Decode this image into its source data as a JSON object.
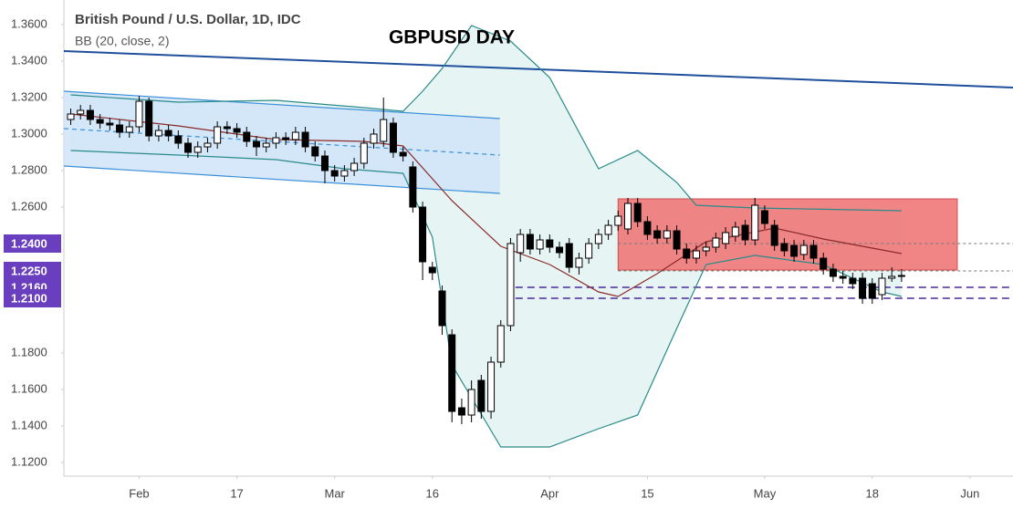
{
  "chart_data": {
    "type": "candlestick",
    "legend_title": "British Pound / U.S. Dollar, 1D, IDC",
    "legend_subtitle": "BB (20, close, 2)",
    "title": "GBPUSD DAY",
    "xlim": [
      -0.7,
      96.4
    ],
    "ylim": [
      1.1125,
      1.3735
    ],
    "xticks": [
      {
        "value": 7,
        "label": "Feb"
      },
      {
        "value": 17,
        "label": "17"
      },
      {
        "value": 27,
        "label": "Mar"
      },
      {
        "value": 37,
        "label": "16"
      },
      {
        "value": 49,
        "label": "Apr"
      },
      {
        "value": 59,
        "label": "15"
      },
      {
        "value": 71,
        "label": "May"
      },
      {
        "value": 82,
        "label": "18"
      },
      {
        "value": 92,
        "label": "Jun"
      }
    ],
    "yticks": [
      {
        "value": 1.36,
        "label": "1.3600"
      },
      {
        "value": 1.34,
        "label": "1.3400"
      },
      {
        "value": 1.32,
        "label": "1.3200"
      },
      {
        "value": 1.3,
        "label": "1.3000"
      },
      {
        "value": 1.28,
        "label": "1.2800"
      },
      {
        "value": 1.26,
        "label": "1.2600"
      },
      {
        "value": 1.18,
        "label": "1.1800"
      },
      {
        "value": 1.16,
        "label": "1.1600"
      },
      {
        "value": 1.14,
        "label": "1.1400"
      },
      {
        "value": 1.12,
        "label": "1.1200"
      }
    ],
    "levels": [
      {
        "value": 1.24,
        "label": "1.2400"
      },
      {
        "value": 1.225,
        "label": "1.2250"
      },
      {
        "value": 1.216,
        "label": "1.2160"
      },
      {
        "value": 1.21,
        "label": "1.2100"
      }
    ],
    "up_color": "#ffffff",
    "down_color": "#000000",
    "open": [
      1.308,
      1.311,
      1.313,
      1.308,
      1.306,
      1.305,
      1.301,
      1.304,
      1.318,
      1.299,
      1.302,
      1.299,
      1.295,
      1.29,
      1.293,
      1.295,
      1.304,
      1.303,
      1.301,
      1.296,
      1.293,
      1.295,
      1.298,
      1.297,
      1.301,
      1.293,
      1.288,
      1.28,
      1.277,
      1.28,
      1.284,
      1.295,
      1.296,
      1.306,
      1.29,
      1.282,
      1.26,
      1.227,
      1.214,
      1.19,
      1.15,
      1.146,
      1.165,
      1.148,
      1.175,
      1.195,
      1.235,
      1.245,
      1.237,
      1.242,
      1.238,
      1.24,
      1.227,
      1.232,
      1.24,
      1.245,
      1.25,
      1.248,
      1.262,
      1.252,
      1.247,
      1.243,
      1.247,
      1.237,
      1.232,
      1.236,
      1.238,
      1.24,
      1.244,
      1.25,
      1.242,
      1.258,
      1.25,
      1.24,
      1.239,
      1.234,
      1.239,
      1.232,
      1.226,
      1.222,
      1.221,
      1.221,
      1.218,
      1.212,
      1.221,
      1.222
    ],
    "high": [
      1.314,
      1.316,
      1.316,
      1.311,
      1.309,
      1.308,
      1.307,
      1.321,
      1.32,
      1.305,
      1.305,
      1.302,
      1.298,
      1.296,
      1.298,
      1.307,
      1.307,
      1.306,
      1.304,
      1.299,
      1.298,
      1.301,
      1.301,
      1.304,
      1.304,
      1.296,
      1.291,
      1.283,
      1.283,
      1.287,
      1.298,
      1.303,
      1.32,
      1.309,
      1.293,
      1.285,
      1.263,
      1.23,
      1.217,
      1.193,
      1.155,
      1.165,
      1.168,
      1.178,
      1.198,
      1.243,
      1.248,
      1.248,
      1.245,
      1.245,
      1.241,
      1.243,
      1.235,
      1.243,
      1.248,
      1.253,
      1.258,
      1.265,
      1.265,
      1.255,
      1.25,
      1.25,
      1.25,
      1.24,
      1.239,
      1.241,
      1.246,
      1.249,
      1.252,
      1.253,
      1.265,
      1.261,
      1.253,
      1.243,
      1.242,
      1.242,
      1.242,
      1.235,
      1.229,
      1.225,
      1.224,
      1.224,
      1.221,
      1.224,
      1.227,
      1.226
    ],
    "low": [
      1.305,
      1.308,
      1.305,
      1.303,
      1.302,
      1.298,
      1.298,
      1.301,
      1.296,
      1.296,
      1.296,
      1.292,
      1.287,
      1.287,
      1.29,
      1.292,
      1.3,
      1.298,
      1.293,
      1.288,
      1.29,
      1.292,
      1.294,
      1.294,
      1.29,
      1.285,
      1.273,
      1.274,
      1.274,
      1.277,
      1.281,
      1.292,
      1.293,
      1.287,
      1.285,
      1.257,
      1.22,
      1.22,
      1.19,
      1.142,
      1.141,
      1.142,
      1.144,
      1.144,
      1.172,
      1.192,
      1.23,
      1.234,
      1.234,
      1.235,
      1.232,
      1.224,
      1.223,
      1.229,
      1.237,
      1.242,
      1.247,
      1.245,
      1.249,
      1.242,
      1.24,
      1.24,
      1.234,
      1.229,
      1.229,
      1.233,
      1.235,
      1.237,
      1.241,
      1.239,
      1.239,
      1.248,
      1.236,
      1.233,
      1.23,
      1.231,
      1.229,
      1.223,
      1.219,
      1.218,
      1.215,
      1.207,
      1.207,
      1.209,
      1.219,
      1.219
    ],
    "close": [
      1.311,
      1.313,
      1.308,
      1.306,
      1.305,
      1.301,
      1.304,
      1.318,
      1.299,
      1.302,
      1.299,
      1.295,
      1.29,
      1.293,
      1.295,
      1.304,
      1.303,
      1.301,
      1.296,
      1.293,
      1.295,
      1.298,
      1.297,
      1.301,
      1.293,
      1.288,
      1.28,
      1.277,
      1.28,
      1.284,
      1.295,
      1.3,
      1.308,
      1.29,
      1.288,
      1.26,
      1.23,
      1.224,
      1.195,
      1.148,
      1.146,
      1.16,
      1.148,
      1.175,
      1.195,
      1.24,
      1.245,
      1.237,
      1.242,
      1.238,
      1.235,
      1.227,
      1.232,
      1.24,
      1.245,
      1.25,
      1.255,
      1.262,
      1.252,
      1.245,
      1.243,
      1.247,
      1.237,
      1.232,
      1.236,
      1.238,
      1.243,
      1.246,
      1.249,
      1.242,
      1.261,
      1.251,
      1.239,
      1.236,
      1.233,
      1.239,
      1.232,
      1.226,
      1.222,
      1.221,
      1.218,
      1.21,
      1.21,
      1.221,
      1.222,
      1.2225
    ],
    "bands": [
      {
        "color": "#2a8a8a",
        "x": [
          0,
          11,
          21,
          30,
          34,
          36,
          38,
          41,
          45,
          49,
          54,
          58,
          62,
          64,
          70,
          85
        ],
        "values": [
          1.3215,
          1.3175,
          1.3185,
          1.3145,
          1.3125,
          1.3235,
          1.336,
          1.3595,
          1.351,
          1.331,
          1.281,
          1.291,
          1.2735,
          1.261,
          1.2595,
          1.258
        ]
      },
      {
        "color": "#8b2a2a",
        "x": [
          0,
          11,
          21,
          30,
          34,
          39,
          44,
          49,
          54,
          56,
          60,
          65,
          72,
          77,
          85
        ],
        "values": [
          1.311,
          1.3045,
          1.297,
          1.296,
          1.2935,
          1.2635,
          1.2385,
          1.2285,
          1.2135,
          1.211,
          1.2235,
          1.241,
          1.2485,
          1.2425,
          1.2345
        ]
      },
      {
        "color": "#2a8a8a",
        "x": [
          0,
          11,
          21,
          28,
          34,
          37,
          39,
          44,
          49,
          54,
          58,
          62,
          65,
          70,
          77,
          83,
          85
        ],
        "values": [
          1.291,
          1.2885,
          1.286,
          1.281,
          1.2785,
          1.2435,
          1.1735,
          1.1285,
          1.1285,
          1.1385,
          1.146,
          1.1935,
          1.2285,
          1.2335,
          1.2285,
          1.2135,
          1.211
        ]
      }
    ],
    "band_fill": "#e6f5f4",
    "channel": {
      "x": [
        -0.7,
        43.9
      ],
      "top": [
        1.3235,
        1.3085
      ],
      "mid": [
        1.303,
        1.2885
      ],
      "bottom": [
        1.2825,
        1.2675
      ],
      "color": "#3a8fd8",
      "fill": "#cfe4f8"
    },
    "trend_line": {
      "x": [
        -0.7,
        96.4
      ],
      "values": [
        1.3455,
        1.3255
      ],
      "color": "#1f4e9c"
    },
    "zone": {
      "x": [
        56,
        90.7
      ],
      "y": [
        1.2255,
        1.2645
      ],
      "color": "#f07878"
    },
    "dashed_lines": [
      {
        "value": 1.24,
        "x": [
          56,
          96.4
        ],
        "color": "#777777"
      },
      {
        "value": 1.225,
        "x": [
          56,
          96.4
        ],
        "color": "#777777"
      },
      {
        "value": 1.216,
        "x": [
          45.5,
          96.4
        ],
        "color": "#4b2a9c"
      },
      {
        "value": 1.21,
        "x": [
          45.5,
          96.4
        ],
        "color": "#4b2a9c"
      }
    ],
    "level_color": "#6a3fbf"
  }
}
